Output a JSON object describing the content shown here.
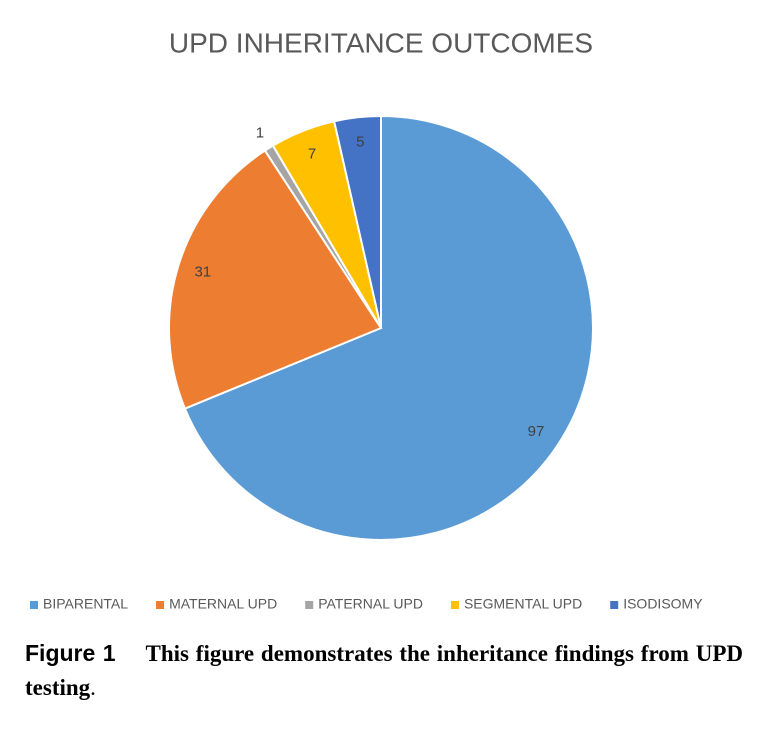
{
  "chart_data": {
    "type": "pie",
    "title": "UPD INHERITANCE OUTCOMES",
    "categories": [
      "BIPARENTAL",
      "MATERNAL UPD",
      "PATERNAL UPD",
      "SEGMENTAL UPD",
      "ISODISOMY"
    ],
    "values": [
      97,
      31,
      1,
      7,
      5
    ],
    "colors": [
      "#5b9bd5",
      "#ed7d31",
      "#a5a5a5",
      "#ffc000",
      "#4472c4"
    ],
    "legend": "bottom"
  },
  "caption": {
    "label": "Figure 1",
    "text": "This figure demonstrates the inheritance findings from UPD testing",
    "end": "."
  }
}
